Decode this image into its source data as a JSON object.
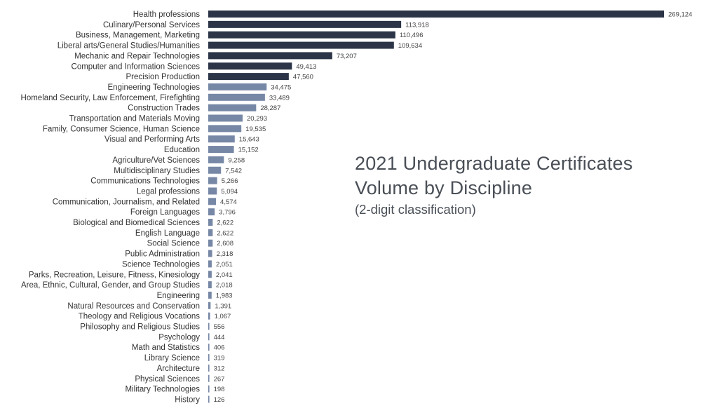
{
  "chart_data": {
    "type": "bar",
    "orientation": "horizontal",
    "title_line1": "2021 Undergraduate Certificates",
    "title_line2": "Volume by Discipline",
    "subtitle": "(2-digit classification)",
    "categories": [
      "Health professions",
      "Culinary/Personal Services",
      "Business, Management, Marketing",
      "Liberal arts/General Studies/Humanities",
      "Mechanic and Repair Technologies",
      "Computer and Information Sciences",
      "Precision Production",
      "Engineering Technologies",
      "Homeland Security, Law Enforcement, Firefighting",
      "Construction Trades",
      "Transportation and Materials Moving",
      "Family, Consumer Science, Human Science",
      "Visual and Performing Arts",
      "Education",
      "Agriculture/Vet Sciences",
      "Multidisciplinary Studies",
      "Communications Technologies",
      "Legal professions",
      "Communication, Journalism, and Related",
      "Foreign Languages",
      "Biological and Biomedical Sciences",
      "English Language",
      "Social Science",
      "Public Administration",
      "Science Technologies",
      "Parks, Recreation, Leisure, Fitness, Kinesiology",
      "Area, Ethnic, Cultural, Gender, and Group Studies",
      "Engineering",
      "Natural Resources and Conservation",
      "Theology and Religious Vocations",
      "Philosophy and Religious Studies",
      "Psychology",
      "Math and Statistics",
      "Library Science",
      "Architecture",
      "Physical Sciences",
      "Military Technologies",
      "History"
    ],
    "values": [
      269124,
      113918,
      110496,
      109634,
      73207,
      49413,
      47560,
      34475,
      33489,
      28287,
      20293,
      19535,
      15643,
      15152,
      9258,
      7542,
      5266,
      5094,
      4574,
      3796,
      2622,
      2622,
      2608,
      2318,
      2051,
      2041,
      2018,
      1983,
      1391,
      1067,
      556,
      444,
      406,
      319,
      312,
      267,
      198,
      126
    ],
    "value_labels": [
      "269,124",
      "113,918",
      "110,496",
      "109,634",
      "73,207",
      "49,413",
      "47,560",
      "34,475",
      "33,489",
      "28,287",
      "20,293",
      "19,535",
      "15,643",
      "15,152",
      "9,258",
      "7,542",
      "5,266",
      "5,094",
      "4,574",
      "3,796",
      "2,622",
      "2,622",
      "2,608",
      "2,318",
      "2,051",
      "2,041",
      "2,018",
      "1,983",
      "1,391",
      "1,067",
      "556",
      "444",
      "406",
      "319",
      "312",
      "267",
      "198",
      "126"
    ],
    "highlight_count": 7,
    "colors": {
      "highlight_bar": "#2b3547",
      "regular_bar": "#7788a6",
      "title": "#4a4f57"
    },
    "grid": false,
    "legend": "none"
  }
}
